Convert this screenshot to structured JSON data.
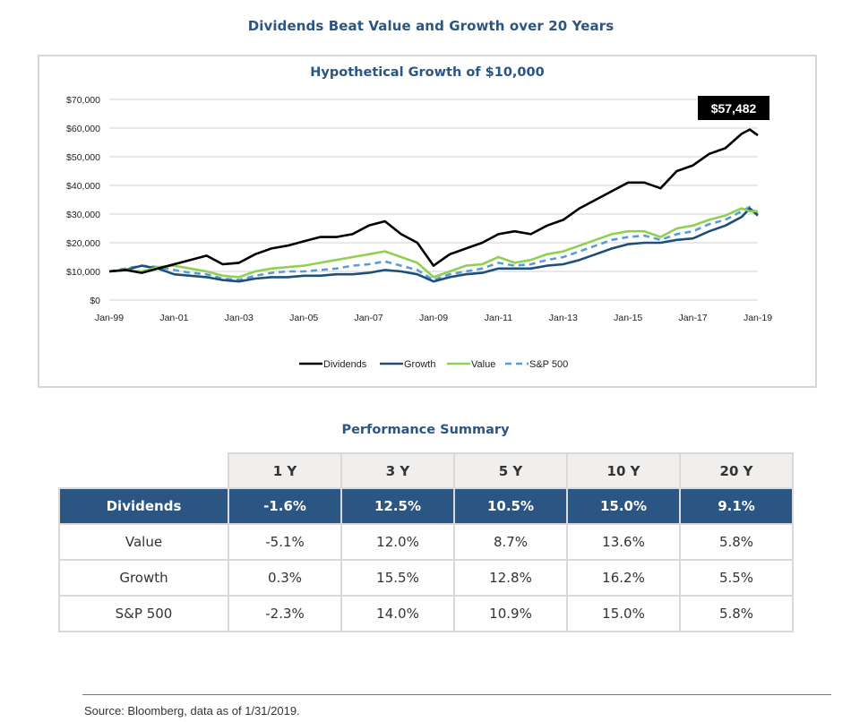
{
  "page": {
    "title": "Dividends Beat Value and Growth over 20 Years",
    "footer_source": "Source: Bloomberg, data as of 1/31/2019."
  },
  "chart_data": {
    "type": "line",
    "title": "Hypothetical Growth of $10,000",
    "xlabel": "",
    "ylabel": "",
    "x_ticks": [
      "Jan-99",
      "Jan-01",
      "Jan-03",
      "Jan-05",
      "Jan-07",
      "Jan-09",
      "Jan-11",
      "Jan-13",
      "Jan-15",
      "Jan-17",
      "Jan-19"
    ],
    "y_ticks": [
      "$0",
      "$10,000",
      "$20,000",
      "$30,000",
      "$40,000",
      "$50,000",
      "$60,000",
      "$70,000"
    ],
    "ylim": [
      0,
      70000
    ],
    "xlim": [
      1999.0,
      2019.0
    ],
    "grid": true,
    "legend_position": "bottom",
    "x": [
      1999.0,
      1999.5,
      2000.0,
      2000.5,
      2001.0,
      2001.5,
      2002.0,
      2002.5,
      2003.0,
      2003.5,
      2004.0,
      2004.5,
      2005.0,
      2005.5,
      2006.0,
      2006.5,
      2007.0,
      2007.5,
      2008.0,
      2008.5,
      2009.0,
      2009.5,
      2010.0,
      2010.5,
      2011.0,
      2011.5,
      2012.0,
      2012.5,
      2013.0,
      2013.5,
      2014.0,
      2014.5,
      2015.0,
      2015.5,
      2016.0,
      2016.5,
      2017.0,
      2017.5,
      2018.0,
      2018.5,
      2018.75,
      2019.0
    ],
    "series": [
      {
        "name": "Dividends",
        "color": "#000000",
        "dash": false,
        "values": [
          10000,
          10500,
          9500,
          11000,
          12500,
          14000,
          15500,
          12500,
          13000,
          16000,
          18000,
          19000,
          20500,
          22000,
          22000,
          23000,
          26000,
          27500,
          23000,
          20000,
          12000,
          16000,
          18000,
          20000,
          23000,
          24000,
          23000,
          26000,
          28000,
          32000,
          35000,
          38000,
          41000,
          41000,
          39000,
          45000,
          47000,
          51000,
          53000,
          58000,
          59500,
          57482
        ]
      },
      {
        "name": "Growth",
        "color": "#1f4e79",
        "dash": false,
        "values": [
          10000,
          10500,
          12000,
          11000,
          9000,
          8500,
          8000,
          7000,
          6500,
          7500,
          8000,
          8000,
          8500,
          8500,
          9000,
          9000,
          9500,
          10500,
          10000,
          9000,
          6500,
          8000,
          9000,
          9500,
          11000,
          11000,
          11000,
          12000,
          12500,
          14000,
          16000,
          18000,
          19500,
          20000,
          20000,
          21000,
          21500,
          24000,
          26000,
          29000,
          32000,
          29500
        ]
      },
      {
        "name": "Value",
        "color": "#8fd14f",
        "dash": false,
        "values": [
          10000,
          10500,
          10000,
          11500,
          12000,
          11000,
          10000,
          8500,
          8000,
          10000,
          11000,
          11500,
          12000,
          13000,
          14000,
          15000,
          16000,
          17000,
          15000,
          13000,
          8000,
          10000,
          12000,
          12500,
          15000,
          13000,
          14000,
          16000,
          17000,
          19000,
          21000,
          23000,
          24000,
          24000,
          22000,
          25000,
          26000,
          28000,
          29500,
          32000,
          31000,
          31000
        ]
      },
      {
        "name": "S&P 500",
        "color": "#5b9bd5",
        "dash": true,
        "values": [
          10000,
          11000,
          12000,
          11500,
          10500,
          9500,
          9000,
          7500,
          7000,
          8500,
          9500,
          10000,
          10000,
          10500,
          11000,
          12000,
          12500,
          13500,
          12000,
          10500,
          7000,
          9000,
          10000,
          11000,
          13000,
          12000,
          12500,
          14000,
          15000,
          17000,
          19000,
          21000,
          22000,
          22500,
          21000,
          23000,
          24000,
          26500,
          28000,
          31000,
          32500,
          30000
        ]
      }
    ],
    "annotations": [
      {
        "text": "$57,482",
        "series": "Dividends",
        "style": "black-box"
      }
    ]
  },
  "performance_summary": {
    "title": "Performance Summary",
    "columns": [
      "1 Y",
      "3 Y",
      "5 Y",
      "10 Y",
      "20 Y"
    ],
    "rows": [
      {
        "label": "Dividends",
        "highlight": true,
        "values": [
          "-1.6%",
          "12.5%",
          "10.5%",
          "15.0%",
          "9.1%"
        ]
      },
      {
        "label": "Value",
        "highlight": false,
        "values": [
          "-5.1%",
          "12.0%",
          "8.7%",
          "13.6%",
          "5.8%"
        ]
      },
      {
        "label": "Growth",
        "highlight": false,
        "values": [
          "0.3%",
          "15.5%",
          "12.8%",
          "16.2%",
          "5.5%"
        ]
      },
      {
        "label": "S&P 500",
        "highlight": false,
        "values": [
          "-2.3%",
          "14.0%",
          "10.9%",
          "15.0%",
          "5.8%"
        ]
      }
    ]
  }
}
